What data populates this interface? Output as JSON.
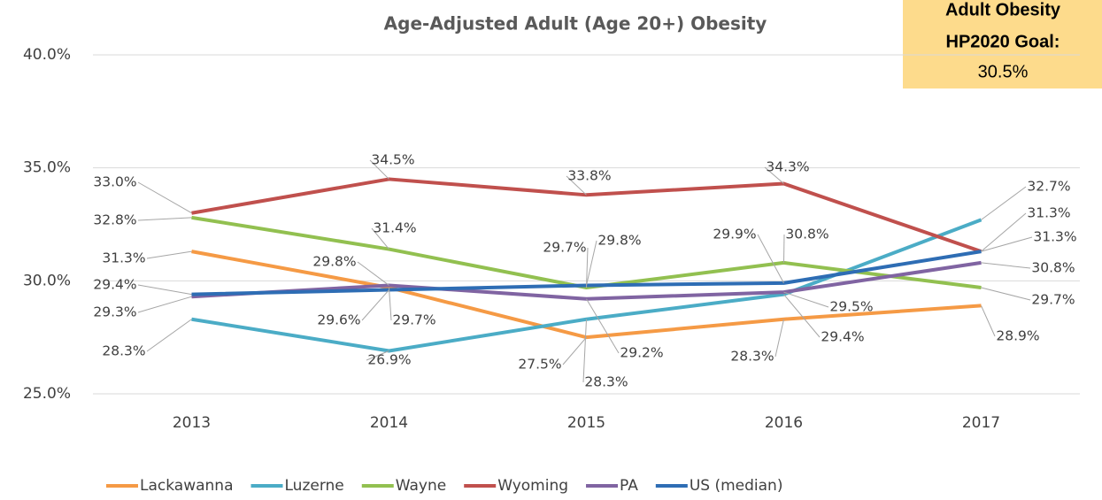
{
  "chart_data": {
    "type": "line",
    "title": "Age-Adjusted Adult (Age 20+) Obesity",
    "annotation": {
      "lines": [
        "Adult Obesity",
        "HP2020 Goal:"
      ],
      "value": "30.5%"
    },
    "categories": [
      "2013",
      "2014",
      "2015",
      "2016",
      "2017"
    ],
    "ylim": [
      25,
      40
    ],
    "yticks": [
      {
        "value": 25,
        "label": "25.0%"
      },
      {
        "value": 30,
        "label": "30.0%"
      },
      {
        "value": 35,
        "label": "35.0%"
      },
      {
        "value": 40,
        "label": "40.0%"
      }
    ],
    "grid": true,
    "legend": "bottom",
    "series": [
      {
        "name": "Lackawanna",
        "color": "#f59a45",
        "values": [
          31.3,
          29.7,
          27.5,
          28.3,
          28.9
        ],
        "value_labels": [
          "31.3%",
          "29.7%",
          "27.5%",
          "28.3%",
          "28.9%"
        ]
      },
      {
        "name": "Luzerne",
        "color": "#4bacc6",
        "values": [
          28.3,
          26.9,
          28.3,
          29.4,
          32.7
        ],
        "value_labels": [
          "28.3%",
          "26.9%",
          "28.3%",
          "29.4%",
          "32.7%"
        ]
      },
      {
        "name": "Wayne",
        "color": "#92c050",
        "values": [
          32.8,
          31.4,
          29.7,
          30.8,
          29.7
        ],
        "value_labels": [
          "32.8%",
          "31.4%",
          "29.7%",
          "30.8%",
          "29.7%"
        ]
      },
      {
        "name": "Wyoming",
        "color": "#c0504d",
        "values": [
          33.0,
          34.5,
          33.8,
          34.3,
          31.3
        ],
        "value_labels": [
          "33.0%",
          "34.5%",
          "33.8%",
          "34.3%",
          "31.3%"
        ]
      },
      {
        "name": "PA",
        "color": "#8064a2",
        "values": [
          29.3,
          29.8,
          29.2,
          29.5,
          30.8
        ],
        "value_labels": [
          "29.3%",
          "29.8%",
          "29.2%",
          "29.5%",
          "30.8%"
        ]
      },
      {
        "name": "US (median)",
        "color": "#2e6db4",
        "values": [
          29.4,
          29.6,
          29.8,
          29.9,
          31.3
        ],
        "value_labels": [
          "29.4%",
          "29.6%",
          "29.8%",
          "29.9%",
          "31.3%"
        ]
      }
    ]
  }
}
